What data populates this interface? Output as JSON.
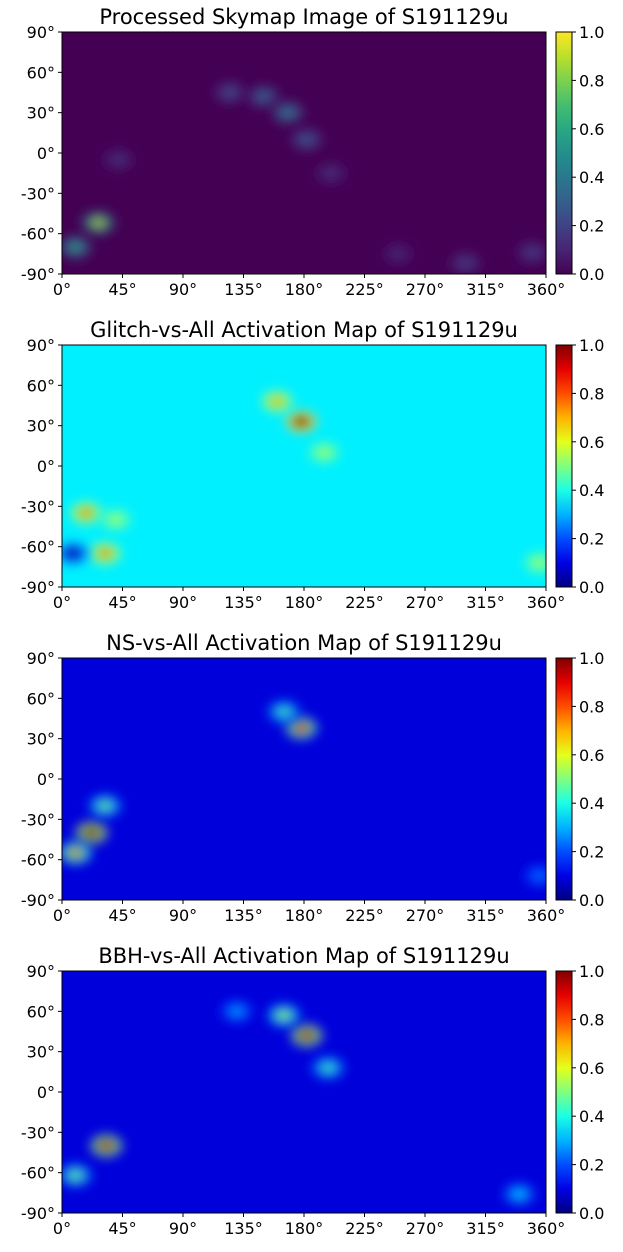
{
  "chart_data": [
    {
      "type": "heatmap",
      "title": "Processed Skymap Image of S191129u",
      "colormap": "viridis",
      "background_value": 0.0,
      "xlim": [
        0,
        360
      ],
      "ylim": [
        -90,
        90
      ],
      "x_ticks": [
        "0°",
        "45°",
        "90°",
        "135°",
        "180°",
        "225°",
        "270°",
        "315°",
        "360°"
      ],
      "y_ticks": [
        "90°",
        "60°",
        "30°",
        "0°",
        "-30°",
        "-60°",
        "-90°"
      ],
      "colorbar_ticks": [
        "1.0",
        "0.8",
        "0.6",
        "0.4",
        "0.2",
        "0.0"
      ],
      "colorbar_range": [
        0,
        1
      ],
      "hotspots": [
        {
          "x": 27,
          "y": -52,
          "value": 0.9
        },
        {
          "x": 10,
          "y": -70,
          "value": 0.6
        },
        {
          "x": 42,
          "y": -5,
          "value": 0.15
        },
        {
          "x": 125,
          "y": 45,
          "value": 0.25
        },
        {
          "x": 150,
          "y": 42,
          "value": 0.35
        },
        {
          "x": 168,
          "y": 30,
          "value": 0.45
        },
        {
          "x": 182,
          "y": 10,
          "value": 0.3
        },
        {
          "x": 200,
          "y": -15,
          "value": 0.15
        },
        {
          "x": 250,
          "y": -75,
          "value": 0.12
        },
        {
          "x": 300,
          "y": -82,
          "value": 0.2
        },
        {
          "x": 350,
          "y": -74,
          "value": 0.2
        }
      ]
    },
    {
      "type": "heatmap",
      "title": "Glitch-vs-All Activation Map of S191129u",
      "colormap": "jet",
      "background_value": 0.36,
      "xlim": [
        0,
        360
      ],
      "ylim": [
        -90,
        90
      ],
      "x_ticks": [
        "0°",
        "45°",
        "90°",
        "135°",
        "180°",
        "225°",
        "270°",
        "315°",
        "360°"
      ],
      "y_ticks": [
        "90°",
        "60°",
        "30°",
        "0°",
        "-30°",
        "-60°",
        "-90°"
      ],
      "colorbar_ticks": [
        "1.0",
        "0.8",
        "0.6",
        "0.4",
        "0.2",
        "0.0"
      ],
      "colorbar_range": [
        0,
        1
      ],
      "hotspots": [
        {
          "x": 178,
          "y": 33,
          "value": 1.0
        },
        {
          "x": 160,
          "y": 48,
          "value": 0.7
        },
        {
          "x": 195,
          "y": 10,
          "value": 0.55
        },
        {
          "x": 18,
          "y": -35,
          "value": 0.75
        },
        {
          "x": 32,
          "y": -65,
          "value": 0.75
        },
        {
          "x": 8,
          "y": -65,
          "value": 0.0
        },
        {
          "x": 40,
          "y": -40,
          "value": 0.55
        },
        {
          "x": 355,
          "y": -72,
          "value": 0.55
        }
      ]
    },
    {
      "type": "heatmap",
      "title": "NS-vs-All Activation Map of S191129u",
      "colormap": "jet",
      "background_value": 0.09,
      "xlim": [
        0,
        360
      ],
      "ylim": [
        -90,
        90
      ],
      "x_ticks": [
        "0°",
        "45°",
        "90°",
        "135°",
        "180°",
        "225°",
        "270°",
        "315°",
        "360°"
      ],
      "y_ticks": [
        "90°",
        "60°",
        "30°",
        "0°",
        "-30°",
        "-60°",
        "-90°"
      ],
      "colorbar_ticks": [
        "1.0",
        "0.8",
        "0.6",
        "0.4",
        "0.2",
        "0.0"
      ],
      "colorbar_range": [
        0,
        1
      ],
      "hotspots": [
        {
          "x": 178,
          "y": 38,
          "value": 0.85
        },
        {
          "x": 165,
          "y": 50,
          "value": 0.45
        },
        {
          "x": 22,
          "y": -40,
          "value": 1.0
        },
        {
          "x": 10,
          "y": -55,
          "value": 0.75
        },
        {
          "x": 32,
          "y": -20,
          "value": 0.5
        },
        {
          "x": 355,
          "y": -72,
          "value": 0.25
        }
      ]
    },
    {
      "type": "heatmap",
      "title": "BBH-vs-All Activation Map of S191129u",
      "colormap": "jet",
      "background_value": 0.09,
      "xlim": [
        0,
        360
      ],
      "ylim": [
        -90,
        90
      ],
      "x_ticks": [
        "0°",
        "45°",
        "90°",
        "135°",
        "180°",
        "225°",
        "270°",
        "315°",
        "360°"
      ],
      "y_ticks": [
        "90°",
        "60°",
        "30°",
        "0°",
        "-30°",
        "-60°",
        "-90°"
      ],
      "colorbar_ticks": [
        "1.0",
        "0.8",
        "0.6",
        "0.4",
        "0.2",
        "0.0"
      ],
      "colorbar_range": [
        0,
        1
      ],
      "hotspots": [
        {
          "x": 182,
          "y": 42,
          "value": 0.95
        },
        {
          "x": 165,
          "y": 57,
          "value": 0.55
        },
        {
          "x": 198,
          "y": 18,
          "value": 0.45
        },
        {
          "x": 33,
          "y": -40,
          "value": 0.95
        },
        {
          "x": 10,
          "y": -62,
          "value": 0.5
        },
        {
          "x": 130,
          "y": 60,
          "value": 0.3
        },
        {
          "x": 340,
          "y": -76,
          "value": 0.35
        }
      ]
    }
  ]
}
